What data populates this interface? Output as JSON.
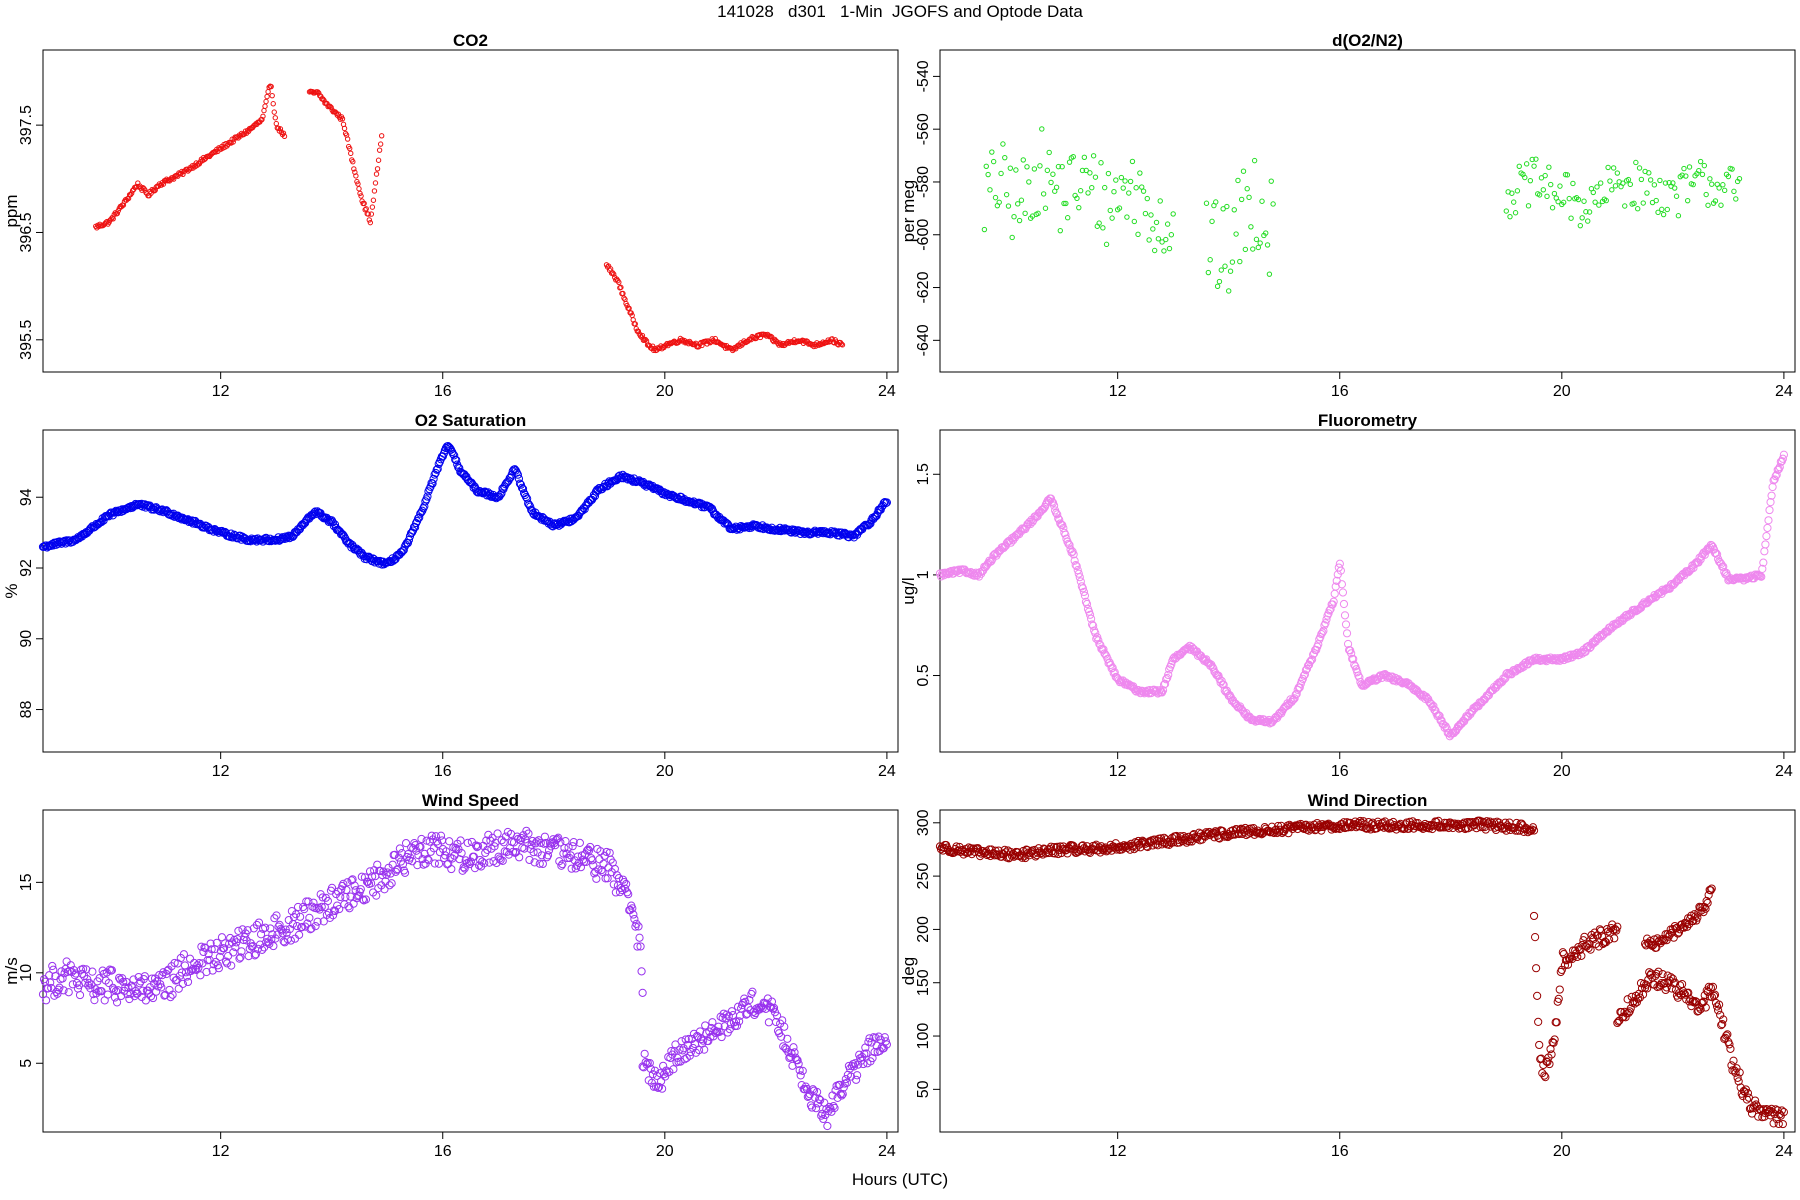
{
  "title": "141028   d301   1-Min  JGOFS and Optode Data",
  "xlabel": "Hours (UTC)",
  "chart_data": [
    {
      "type": "scatter",
      "title": "CO2",
      "ylabel": "ppm",
      "color": "#ee1111",
      "xlim": [
        8.8,
        24.2
      ],
      "ylim": [
        395.2,
        398.2
      ],
      "xticks": [
        12,
        16,
        20,
        24
      ],
      "yticks": [
        395.5,
        396.5,
        397.5
      ],
      "segments": [
        {
          "x": [
            9.75,
            10.0,
            10.3,
            10.5,
            10.7,
            10.9,
            11.1,
            11.3,
            11.6,
            11.9,
            12.2,
            12.5,
            12.75,
            12.9,
            13.0,
            13.15
          ],
          "y": [
            396.55,
            396.6,
            396.8,
            396.95,
            396.85,
            396.95,
            397.0,
            397.05,
            397.15,
            397.25,
            397.35,
            397.45,
            397.55,
            397.9,
            397.5,
            397.4
          ]
        },
        {
          "x": [
            13.6,
            13.75,
            13.9,
            14.2,
            14.4,
            14.55,
            14.7,
            14.9
          ],
          "y": [
            397.8,
            397.8,
            397.7,
            397.55,
            397.1,
            396.8,
            396.6,
            397.4
          ]
        },
        {
          "x": [
            18.95,
            19.15,
            19.3,
            19.5,
            19.7,
            19.85,
            20.0,
            20.3,
            20.6,
            20.9,
            21.2,
            21.5,
            21.8,
            22.1,
            22.4,
            22.7,
            23.0,
            23.2
          ],
          "y": [
            396.2,
            396.05,
            395.85,
            395.6,
            395.45,
            395.4,
            395.45,
            395.5,
            395.45,
            395.5,
            395.4,
            395.5,
            395.55,
            395.45,
            395.5,
            395.45,
            395.5,
            395.45
          ]
        }
      ]
    },
    {
      "type": "scatter",
      "title": "d(O2/N2)",
      "ylabel": "per meg",
      "color": "#22dd22",
      "xlim": [
        8.8,
        24.2
      ],
      "ylim": [
        -652,
        -530
      ],
      "xticks": [
        12,
        16,
        20,
        24
      ],
      "yticks": [
        -640,
        -620,
        -600,
        -580,
        -560,
        -540
      ],
      "segments": [
        {
          "x": [
            9.6,
            9.9,
            10.2,
            10.6,
            11.0,
            11.4,
            11.8,
            12.2,
            12.6,
            13.0
          ],
          "y": [
            -585,
            -580,
            -590,
            -575,
            -585,
            -580,
            -588,
            -582,
            -590,
            -598
          ],
          "spread": 16
        },
        {
          "x": [
            13.6,
            13.9,
            14.2,
            14.5,
            14.8
          ],
          "y": [
            -600,
            -610,
            -595,
            -585,
            -600
          ],
          "spread": 20
        },
        {
          "x": [
            19.0,
            19.5,
            20.0,
            20.5,
            21.0,
            21.5,
            22.0,
            22.5,
            23.0,
            23.2
          ],
          "y": [
            -585,
            -580,
            -585,
            -590,
            -580,
            -582,
            -585,
            -580,
            -582,
            -585
          ],
          "spread": 9
        }
      ]
    },
    {
      "type": "scatter",
      "title": "O2 Saturation",
      "ylabel": "%",
      "color": "#0000ee",
      "xlim": [
        8.8,
        24.2
      ],
      "ylim": [
        86.8,
        95.9
      ],
      "xticks": [
        12,
        16,
        20,
        24
      ],
      "yticks": [
        88,
        90,
        92,
        94
      ],
      "x": [
        8.8,
        9.4,
        10.0,
        10.5,
        11.0,
        11.5,
        12.0,
        12.5,
        13.0,
        13.3,
        13.7,
        14.0,
        14.3,
        14.6,
        15.0,
        15.3,
        15.6,
        15.9,
        16.1,
        16.3,
        16.6,
        17.0,
        17.3,
        17.6,
        18.0,
        18.4,
        18.8,
        19.2,
        19.6,
        20.0,
        20.4,
        20.8,
        21.2,
        21.6,
        22.0,
        22.5,
        23.0,
        23.4,
        23.7,
        24.0
      ],
      "y": [
        92.6,
        92.8,
        93.5,
        93.8,
        93.6,
        93.3,
        93.0,
        92.8,
        92.8,
        92.9,
        93.6,
        93.3,
        92.7,
        92.3,
        92.1,
        92.5,
        93.5,
        94.8,
        95.5,
        94.8,
        94.2,
        94.0,
        94.8,
        93.6,
        93.2,
        93.4,
        94.2,
        94.6,
        94.4,
        94.1,
        93.9,
        93.7,
        93.1,
        93.2,
        93.1,
        93.0,
        93.0,
        92.9,
        93.3,
        93.9
      ]
    },
    {
      "type": "scatter",
      "title": "Fluorometry",
      "ylabel": "ug/l",
      "color": "#ee88ee",
      "xlim": [
        8.8,
        24.2
      ],
      "ylim": [
        0.12,
        1.72
      ],
      "xticks": [
        12,
        16,
        20,
        24
      ],
      "yticks": [
        0.5,
        1.0,
        1.5
      ],
      "x": [
        8.8,
        9.2,
        9.5,
        9.8,
        10.2,
        10.5,
        10.8,
        11.2,
        11.6,
        12.0,
        12.4,
        12.8,
        13.0,
        13.3,
        13.7,
        14.0,
        14.4,
        14.8,
        15.2,
        15.6,
        15.9,
        16.0,
        16.15,
        16.4,
        16.8,
        17.2,
        17.6,
        18.0,
        18.3,
        18.6,
        19.0,
        19.5,
        20.0,
        20.4,
        20.8,
        21.2,
        21.6,
        22.0,
        22.4,
        22.7,
        23.0,
        23.3,
        23.6,
        23.8,
        24.0
      ],
      "y": [
        1.0,
        1.02,
        1.0,
        1.1,
        1.2,
        1.28,
        1.38,
        1.1,
        0.7,
        0.48,
        0.42,
        0.42,
        0.58,
        0.64,
        0.55,
        0.4,
        0.28,
        0.27,
        0.4,
        0.65,
        0.88,
        1.07,
        0.65,
        0.45,
        0.5,
        0.46,
        0.38,
        0.2,
        0.3,
        0.38,
        0.5,
        0.58,
        0.58,
        0.62,
        0.72,
        0.8,
        0.88,
        0.95,
        1.05,
        1.15,
        0.98,
        0.98,
        1.0,
        1.45,
        1.6
      ]
    },
    {
      "type": "scatter",
      "title": "Wind Speed",
      "ylabel": "m/s",
      "color": "#9933ee",
      "xlim": [
        8.8,
        24.2
      ],
      "ylim": [
        1.2,
        19.0
      ],
      "xticks": [
        12,
        16,
        20,
        24
      ],
      "yticks": [
        5,
        10,
        15
      ],
      "segments": [
        {
          "x": [
            8.8,
            9.2,
            9.6,
            10.0,
            10.4,
            10.8,
            11.0,
            11.4,
            11.8,
            12.2,
            12.6,
            13.0,
            13.4,
            13.8,
            14.2,
            14.6,
            15.0,
            15.4,
            15.8,
            16.2,
            16.6,
            17.0,
            17.4,
            17.8,
            18.2,
            18.6,
            19.0,
            19.3,
            19.5,
            19.6
          ],
          "y": [
            9.3,
            9.8,
            9.3,
            9.3,
            9.1,
            9.0,
            9.2,
            10.3,
            10.8,
            11.3,
            11.8,
            12.3,
            12.8,
            13.6,
            14.2,
            14.8,
            15.5,
            16.5,
            17.0,
            16.5,
            16.5,
            17.0,
            17.2,
            16.8,
            16.5,
            16.3,
            15.8,
            14.5,
            12.5,
            9.5
          ],
          "spread": 0.9
        },
        {
          "x": [
            19.6,
            19.9,
            20.2,
            20.5,
            20.8,
            21.1,
            21.4,
            21.7,
            22.0,
            22.3,
            22.6,
            22.9,
            23.1,
            23.4,
            23.7,
            24.0
          ],
          "y": [
            5.0,
            3.8,
            5.5,
            6.2,
            6.5,
            7.2,
            8.0,
            8.5,
            7.5,
            5.5,
            3.5,
            2.0,
            3.5,
            4.5,
            5.8,
            6.0
          ],
          "spread": 0.7
        }
      ]
    },
    {
      "type": "scatter",
      "title": "Wind Direction",
      "ylabel": "deg",
      "color": "#990000",
      "xlim": [
        8.8,
        24.2
      ],
      "ylim": [
        10,
        312
      ],
      "xticks": [
        12,
        16,
        20,
        24
      ],
      "yticks": [
        50,
        100,
        150,
        200,
        250,
        300
      ],
      "segments": [
        {
          "x": [
            8.8,
            9.5,
            10.2,
            11.0,
            11.8,
            12.5,
            13.2,
            14.0,
            14.8,
            15.5,
            16.2,
            17.0,
            17.8,
            18.5,
            19.2,
            19.5
          ],
          "y": [
            277,
            272,
            270,
            275,
            276,
            280,
            285,
            290,
            293,
            296,
            298,
            297,
            298,
            298,
            296,
            294
          ],
          "spread": 4
        },
        {
          "x": [
            19.5,
            19.6,
            19.7,
            19.85,
            20.0,
            20.4,
            20.8,
            21.0
          ],
          "y": [
            210,
            80,
            65,
            90,
            170,
            185,
            195,
            200
          ],
          "spread": 8
        },
        {
          "x": [
            21.0,
            21.3,
            21.6,
            21.9,
            22.2,
            22.5,
            22.7,
            22.9,
            23.1,
            23.4,
            23.7,
            24.0
          ],
          "y": [
            115,
            135,
            155,
            150,
            140,
            125,
            145,
            110,
            70,
            35,
            28,
            22
          ],
          "spread": 8
        },
        {
          "x": [
            21.5,
            21.7,
            22.6,
            22.7
          ],
          "y": [
            190,
            185,
            220,
            240
          ],
          "spread": 6
        }
      ]
    }
  ]
}
